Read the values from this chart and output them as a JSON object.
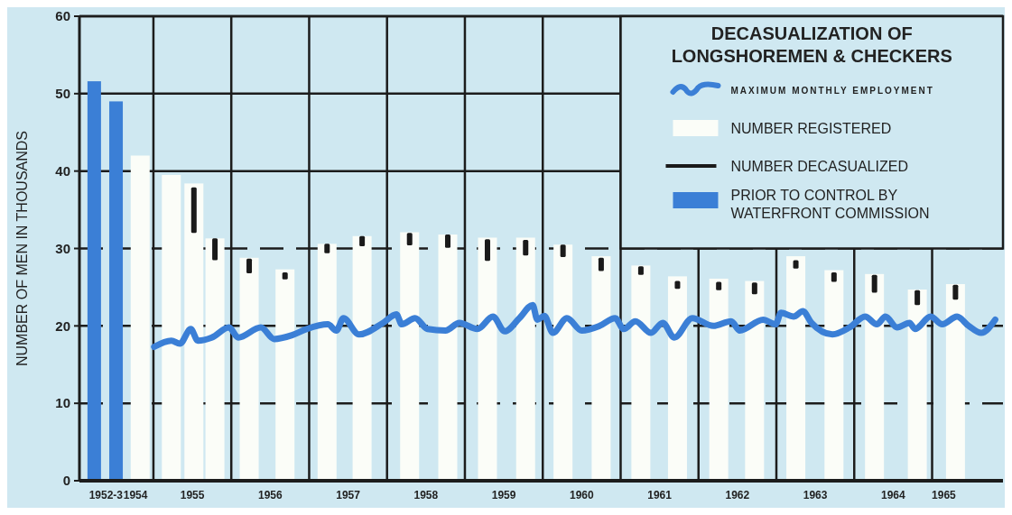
{
  "chart_data": {
    "type": "bar",
    "title": "DECASUALIZATION OF LONGSHOREMEN & CHECKERS",
    "ylabel": "NUMBER OF MEN IN THOUSANDS",
    "xlim": [
      1953.55,
      1965.41
    ],
    "xticks": [
      {
        "value": 1953.89,
        "label": "1952-3"
      },
      {
        "value": 1954.27,
        "label": "1954"
      },
      1955,
      1956,
      1957,
      1958,
      1959,
      1960,
      1961,
      1962,
      1963,
      1964,
      {
        "value": 1964.65,
        "label": "1965"
      },
      {
        "value": 1954.5,
        "label": null
      },
      {
        "value": 1955.5,
        "label": null
      },
      {
        "value": 1956.5,
        "label": null
      },
      {
        "value": 1957.5,
        "label": null
      },
      {
        "value": 1958.5,
        "label": null
      },
      {
        "value": 1959.5,
        "label": null
      },
      {
        "value": 1960.5,
        "label": null
      },
      {
        "value": 1961.5,
        "label": null
      },
      {
        "value": 1962.5,
        "label": null
      },
      {
        "value": 1963.5,
        "label": null
      },
      {
        "value": 1964.5,
        "label": null
      }
    ],
    "ylim": [
      0,
      60
    ],
    "yticks": [
      0,
      10,
      20,
      30,
      40,
      50,
      60
    ],
    "grid": true,
    "legend": "top right",
    "series": [
      {
        "name": "MAXIMUM MONTHLY EMPLOYMENT",
        "type": "line",
        "color": "#3b7fd6",
        "x": [
          1954.51,
          1954.73,
          1954.84,
          1954.98,
          1955.07,
          1955.25,
          1955.47,
          1955.59,
          1955.88,
          1956.05,
          1956.28,
          1956.47,
          1956.74,
          1956.85,
          1956.94,
          1957.14,
          1957.45,
          1957.62,
          1957.69,
          1957.86,
          1958.02,
          1958.25,
          1958.43,
          1958.66,
          1958.86,
          1959.01,
          1959.2,
          1959.37,
          1959.43,
          1959.52,
          1959.63,
          1959.81,
          1960.0,
          1960.23,
          1960.43,
          1960.54,
          1960.69,
          1960.89,
          1961.04,
          1961.19,
          1961.42,
          1961.69,
          1961.92,
          1962.03,
          1962.33,
          1962.49,
          1962.56,
          1962.72,
          1962.84,
          1962.95,
          1963.22,
          1963.44,
          1963.64,
          1963.79,
          1963.9,
          1964.05,
          1964.21,
          1964.28,
          1964.48,
          1964.63,
          1964.82,
          1964.97,
          1965.13,
          1965.31
        ],
        "values": [
          17.3,
          18.1,
          17.7,
          19.6,
          18.1,
          18.5,
          19.8,
          18.5,
          19.8,
          18.3,
          18.8,
          19.6,
          20.2,
          19.4,
          21.0,
          18.9,
          20.4,
          21.5,
          20.2,
          21.0,
          19.6,
          19.4,
          20.4,
          19.6,
          21.2,
          19.3,
          21.0,
          22.7,
          20.8,
          21.3,
          19.1,
          21.0,
          19.4,
          20.0,
          21.0,
          19.6,
          20.6,
          19.1,
          20.4,
          18.5,
          21.0,
          20.0,
          20.6,
          19.4,
          20.8,
          20.2,
          21.7,
          21.2,
          21.9,
          20.4,
          18.9,
          19.8,
          21.2,
          20.2,
          21.2,
          19.8,
          20.4,
          19.6,
          21.2,
          20.2,
          21.2,
          20.0,
          19.1,
          20.8
        ]
      },
      {
        "name": "NUMBER REGISTERED",
        "color": "#fbfdf8",
        "x": [
          1954.33,
          1954.73,
          1955.02,
          1955.29,
          1955.73,
          1956.19,
          1956.73,
          1957.18,
          1957.79,
          1958.28,
          1958.79,
          1959.28,
          1959.76,
          1960.25,
          1960.76,
          1961.23,
          1961.76,
          1962.22,
          1962.75,
          1963.24,
          1963.76,
          1964.31,
          1964.8
        ],
        "values": [
          42.0,
          39.5,
          38.4,
          31.3,
          28.8,
          27.3,
          30.6,
          31.6,
          32.1,
          31.8,
          31.4,
          31.4,
          30.5,
          29.0,
          27.8,
          26.4,
          26.1,
          25.8,
          29.0,
          27.2,
          26.7,
          24.7,
          25.4
        ]
      },
      {
        "name": "NUMBER DECASUALIZED",
        "color": "#1a1a1a",
        "x": [
          1955.02,
          1955.29,
          1955.73,
          1956.19,
          1956.73,
          1957.18,
          1957.79,
          1958.28,
          1958.79,
          1959.28,
          1959.76,
          1960.25,
          1960.76,
          1961.23,
          1961.76,
          1962.22,
          1962.75,
          1963.24,
          1963.76,
          1964.31,
          1964.8
        ],
        "base": [
          32.0,
          28.5,
          26.8,
          26.0,
          29.4,
          30.3,
          30.4,
          30.1,
          28.4,
          29.1,
          28.9,
          27.1,
          26.6,
          24.8,
          24.6,
          24.1,
          27.4,
          25.7,
          24.3,
          22.7,
          23.4
        ],
        "values": [
          5.9,
          2.8,
          1.9,
          0.9,
          1.2,
          1.3,
          1.6,
          1.7,
          2.8,
          2.0,
          1.6,
          1.7,
          1.1,
          1.0,
          1.1,
          1.5,
          1.1,
          1.2,
          2.3,
          1.9,
          1.9
        ]
      },
      {
        "name": "PRIOR TO CONTROL BY WATERFRONT COMMISSION",
        "color": "#3b7fd6",
        "x": [
          1953.74,
          1954.02
        ],
        "values": [
          51.6,
          49.0
        ]
      }
    ]
  }
}
